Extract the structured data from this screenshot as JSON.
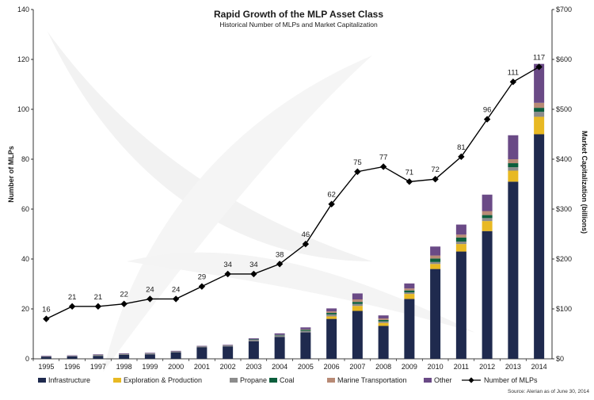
{
  "chart_data": {
    "type": "bar",
    "title": "Rapid Growth of the MLP Asset Class",
    "subtitle": "Historical Number of MLPs and Market Capitalization",
    "ylabel_left": "Number of MLPs",
    "ylabel_right": "Market Capitalization (billions)",
    "xlabel": "",
    "categories": [
      "1995",
      "1996",
      "1997",
      "1998",
      "1999",
      "2000",
      "2001",
      "2002",
      "2003",
      "2004",
      "2005",
      "2006",
      "2007",
      "2008",
      "2009",
      "2010",
      "2011",
      "2012",
      "2013",
      "2014"
    ],
    "ylim_left": [
      0,
      140
    ],
    "yticks_left": [
      "0",
      "20",
      "40",
      "60",
      "80",
      "100",
      "120",
      "140"
    ],
    "ylim_right": [
      0,
      700
    ],
    "yticks_right": [
      "$0",
      "$100",
      "$200",
      "$300",
      "$400",
      "$500",
      "$600",
      "$700"
    ],
    "bar_series": [
      {
        "name": "Infrastructure",
        "color": "#1f2a4e",
        "values": [
          4,
          5,
          6,
          8,
          9,
          13,
          23,
          25,
          35,
          44,
          53,
          80,
          96,
          66,
          120,
          180,
          215,
          256,
          355,
          450
        ]
      },
      {
        "name": "Exploration & Production",
        "color": "#e8b923",
        "values": [
          0,
          0,
          0,
          0,
          0,
          0,
          0,
          0,
          0,
          0,
          0,
          5,
          10,
          6,
          10,
          10,
          15,
          20,
          22,
          35
        ]
      },
      {
        "name": "Propane",
        "color": "#8c8c8c",
        "values": [
          1,
          1,
          2,
          2,
          2,
          2,
          2,
          2,
          3,
          3,
          3,
          4,
          4,
          3,
          3,
          4,
          5,
          6,
          7,
          10
        ]
      },
      {
        "name": "Coal",
        "color": "#0b5e3c",
        "values": [
          0,
          0,
          0,
          0,
          0,
          0,
          0,
          0,
          1,
          1,
          2,
          3,
          4,
          3,
          4,
          7,
          8,
          6,
          8,
          8
        ]
      },
      {
        "name": "Marine Transportation",
        "color": "#b88a75",
        "values": [
          0,
          0,
          0,
          0,
          0,
          0,
          0,
          0,
          0,
          0,
          1,
          3,
          5,
          3,
          4,
          6,
          6,
          8,
          8,
          10
        ]
      },
      {
        "name": "Other",
        "color": "#6a4a86",
        "values": [
          1,
          1,
          1,
          1,
          1,
          1,
          1,
          1,
          2,
          3,
          4,
          6,
          12,
          6,
          10,
          18,
          20,
          33,
          48,
          78
        ]
      }
    ],
    "line_series": {
      "name": "Number of MLPs",
      "color": "#000000",
      "values": [
        16,
        21,
        21,
        22,
        24,
        24,
        29,
        34,
        34,
        38,
        46,
        62,
        75,
        77,
        71,
        72,
        81,
        96,
        111,
        117
      ]
    },
    "data_labels": [
      "16",
      "21",
      "21",
      "22",
      "24",
      "24",
      "29",
      "34",
      "34",
      "38",
      "46",
      "62",
      "75",
      "77",
      "71",
      "72",
      "81",
      "96",
      "111",
      "117"
    ],
    "legend": {
      "position": "bottom",
      "entries": [
        "Infrastructure",
        "Exploration & Production",
        "Propane",
        "Coal",
        "Marine Transportation",
        "Other",
        "Number of MLPs"
      ]
    },
    "grid": false,
    "source": "Source: Alerian as of June 30, 2014"
  }
}
